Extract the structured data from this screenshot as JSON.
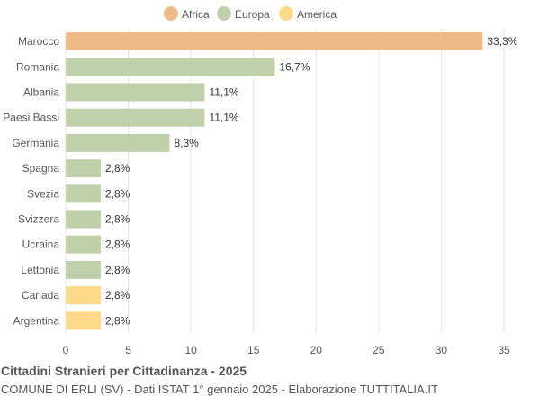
{
  "chart_data": {
    "type": "bar",
    "orientation": "horizontal",
    "title": "Cittadini Stranieri per Cittadinanza - 2025",
    "subtitle": "COMUNE DI ERLI (SV) - Dati ISTAT 1° gennaio 2025 - Elaborazione TUTTITALIA.IT",
    "legend": {
      "position": "top",
      "entries": [
        {
          "name": "Africa",
          "color": "#EEBA88"
        },
        {
          "name": "Europa",
          "color": "#BFD0AA"
        },
        {
          "name": "America",
          "color": "#FFD98A"
        }
      ]
    },
    "categories": [
      "Marocco",
      "Romania",
      "Albania",
      "Paesi Bassi",
      "Germania",
      "Spagna",
      "Svezia",
      "Svizzera",
      "Ucraina",
      "Lettonia",
      "Canada",
      "Argentina"
    ],
    "values": [
      33.3,
      16.7,
      11.1,
      11.1,
      8.3,
      2.8,
      2.8,
      2.8,
      2.8,
      2.8,
      2.8,
      2.8
    ],
    "labels": [
      "33,3%",
      "16,7%",
      "11,1%",
      "11,1%",
      "8,3%",
      "2,8%",
      "2,8%",
      "2,8%",
      "2,8%",
      "2,8%",
      "2,8%",
      "2,8%"
    ],
    "groups": [
      "Africa",
      "Europa",
      "Europa",
      "Europa",
      "Europa",
      "Europa",
      "Europa",
      "Europa",
      "Europa",
      "Europa",
      "America",
      "America"
    ],
    "xlim": [
      0,
      35
    ],
    "xticks": [
      0,
      5,
      10,
      15,
      20,
      25,
      30,
      35
    ],
    "grid": true
  }
}
